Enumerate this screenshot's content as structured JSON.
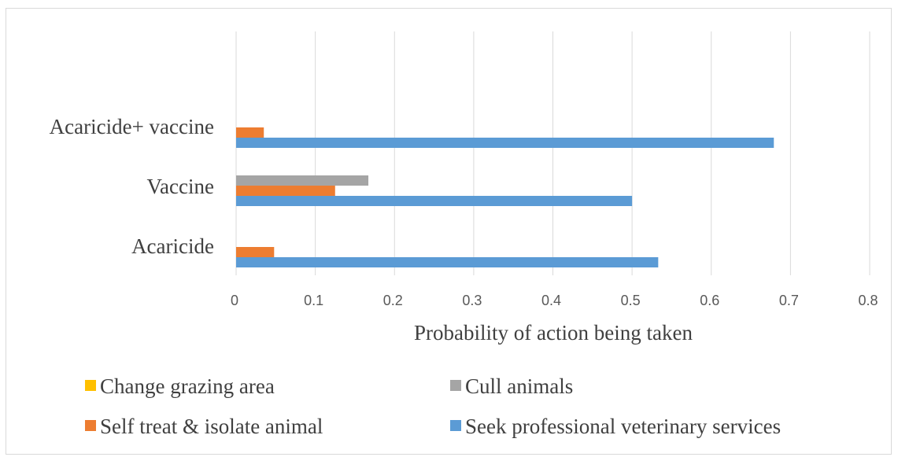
{
  "chart_data": {
    "type": "bar",
    "orientation": "horizontal",
    "categories": [
      "Acaricide",
      "Vaccine",
      "Acaricide+ vaccine"
    ],
    "series": [
      {
        "name": "Change grazing area",
        "values": [
          0,
          0,
          0
        ],
        "color": "#FFC000"
      },
      {
        "name": "Cull animals",
        "values": [
          0,
          0.167,
          0
        ],
        "color": "#A5A5A5"
      },
      {
        "name": "Self treat & isolate animal",
        "values": [
          0.048,
          0.125,
          0.035
        ],
        "color": "#ED7D31"
      },
      {
        "name": "Seek professional veterinary services",
        "values": [
          0.533,
          0.5,
          0.679
        ],
        "color": "#5B9BD5"
      }
    ],
    "xlabel": "Probability of action being taken",
    "ylabel": "",
    "xlim": [
      0,
      0.8
    ],
    "xticks": [
      "0",
      "0.1",
      "0.2",
      "0.3",
      "0.4",
      "0.5",
      "0.6",
      "0.7",
      "0.8"
    ],
    "grid": true,
    "legend_position": "bottom",
    "legend_order": [
      "Change grazing area",
      "Cull animals",
      "Self treat & isolate animal",
      "Seek professional veterinary services"
    ]
  }
}
